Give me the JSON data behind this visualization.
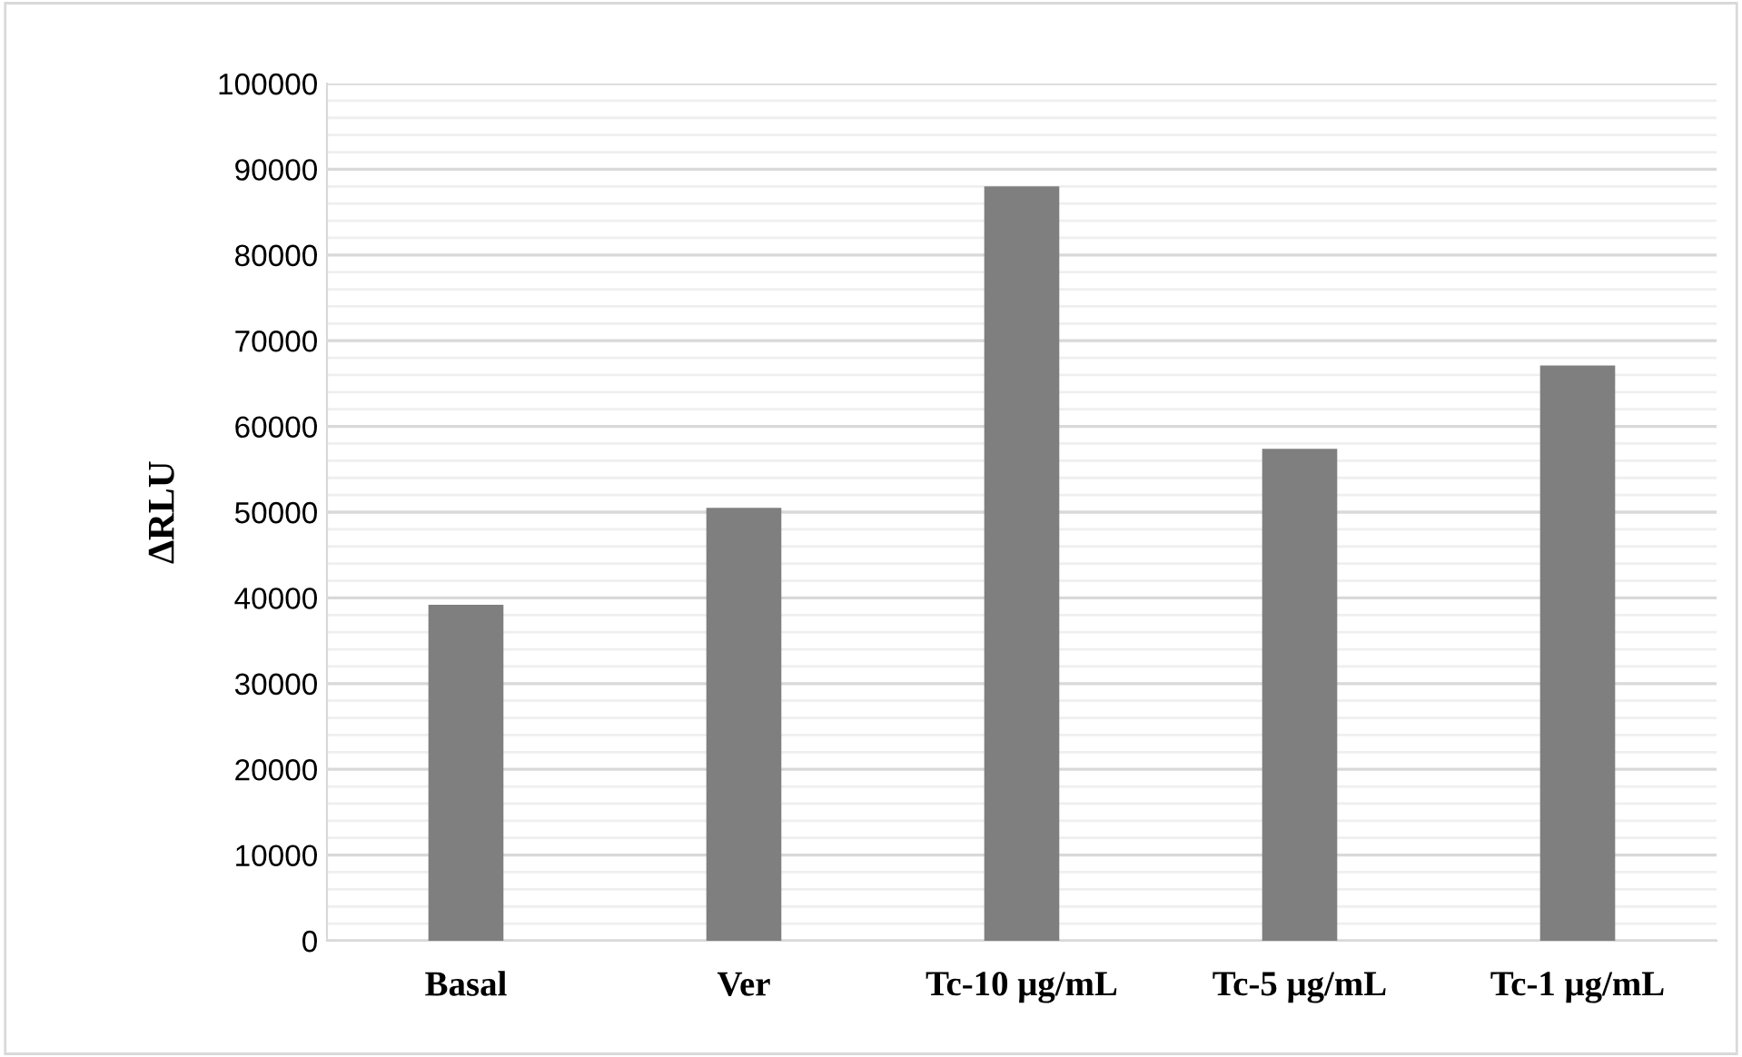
{
  "chart_data": {
    "type": "bar",
    "ylabel": "∆RLU",
    "categories": [
      "Basal",
      "Ver",
      "Tc-10 μg/mL",
      "Tc-5 μg/mL",
      "Tc-1 μg/mL"
    ],
    "values": [
      39200,
      50500,
      88000,
      57400,
      67100
    ],
    "color": "#7f7f7f",
    "ylim": [
      0,
      100000
    ],
    "yticks": [
      0,
      10000,
      20000,
      30000,
      40000,
      50000,
      60000,
      70000,
      80000,
      90000,
      100000
    ],
    "grid": "y"
  }
}
